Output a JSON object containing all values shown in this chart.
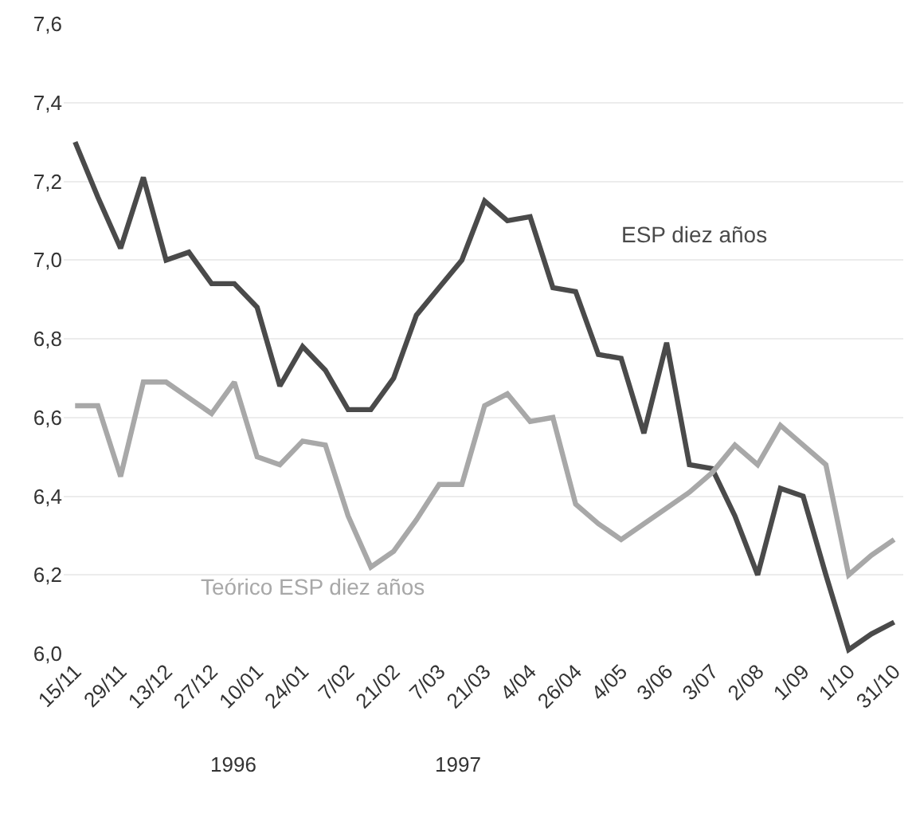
{
  "chart_data": {
    "type": "line",
    "categories": [
      "15/11",
      null,
      "29/11",
      null,
      "13/12",
      null,
      "27/12",
      null,
      "10/01",
      null,
      "24/01",
      null,
      "7/02",
      null,
      "21/02",
      null,
      "7/03",
      null,
      "21/03",
      null,
      "4/04",
      null,
      "26/04",
      null,
      "4/05",
      null,
      "3/06",
      null,
      "3/07",
      null,
      "2/08",
      null,
      "1/09",
      null,
      "1/10",
      null,
      "31/10"
    ],
    "series": [
      {
        "name": "ESP diez años",
        "color": "#4a4a4a",
        "values": [
          7.3,
          7.16,
          7.03,
          7.21,
          7.0,
          7.02,
          6.94,
          6.94,
          6.88,
          6.68,
          6.78,
          6.72,
          6.62,
          6.62,
          6.7,
          6.86,
          6.93,
          7.0,
          7.15,
          7.1,
          7.11,
          6.93,
          6.92,
          6.76,
          6.75,
          6.56,
          6.79,
          6.48,
          6.47,
          6.35,
          6.2,
          6.42,
          6.4,
          6.2,
          6.01,
          6.05,
          6.08
        ]
      },
      {
        "name": "Teórico ESP diez años",
        "color": "#a8a8a8",
        "values": [
          6.63,
          6.63,
          6.45,
          6.69,
          6.69,
          6.65,
          6.61,
          6.69,
          6.5,
          6.48,
          6.54,
          6.53,
          6.35,
          6.22,
          6.26,
          6.34,
          6.43,
          6.43,
          6.63,
          6.66,
          6.59,
          6.6,
          6.38,
          6.33,
          6.29,
          6.33,
          6.37,
          6.41,
          6.46,
          6.53,
          6.48,
          6.58,
          6.53,
          6.48,
          6.2,
          6.25,
          6.29
        ]
      }
    ],
    "ylim": [
      6.0,
      7.6
    ],
    "yticks": [
      {
        "value": 6.0,
        "label": "6,0"
      },
      {
        "value": 6.2,
        "label": "6,2"
      },
      {
        "value": 6.4,
        "label": "6,4"
      },
      {
        "value": 6.6,
        "label": "6,6"
      },
      {
        "value": 6.8,
        "label": "6,8"
      },
      {
        "value": 7.0,
        "label": "7,0"
      },
      {
        "value": 7.2,
        "label": "7,2"
      },
      {
        "value": 7.4,
        "label": "7,4"
      },
      {
        "value": 7.6,
        "label": "7,6"
      }
    ],
    "annotations": [
      "1996",
      "1997"
    ],
    "grid": "y",
    "legend": false,
    "marker": "none",
    "line_style": "solid"
  }
}
